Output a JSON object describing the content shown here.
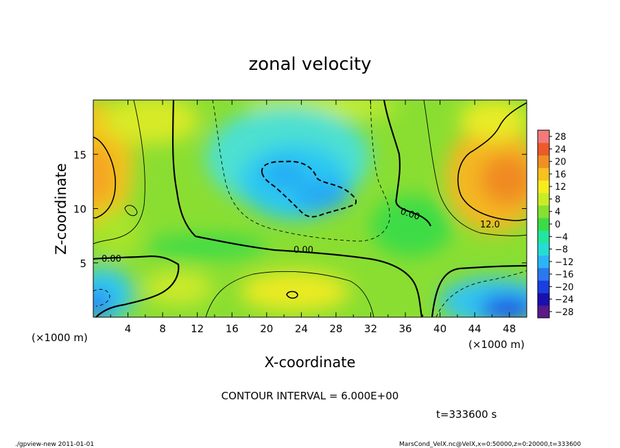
{
  "chart_data": {
    "type": "heatmap",
    "title": "zonal velocity",
    "xlabel": "X-coordinate",
    "ylabel": "Z-coordinate",
    "x_unit": "(×1000 m)",
    "y_unit": "(×1000 m)",
    "xlim": [
      0,
      50
    ],
    "ylim": [
      0,
      20
    ],
    "x_ticks": [
      "4",
      "8",
      "12",
      "16",
      "20",
      "24",
      "28",
      "32",
      "36",
      "40",
      "44",
      "48"
    ],
    "y_ticks": [
      "5",
      "10",
      "15"
    ],
    "colorbar": {
      "labels": [
        "28",
        "24",
        "20",
        "16",
        "12",
        "8",
        "4",
        "0",
        "−4",
        "−8",
        "−12",
        "−16",
        "−20",
        "−24",
        "−28"
      ],
      "range": [
        -30,
        30
      ],
      "colors": [
        "#5a1a8a",
        "#1a10b0",
        "#1a3fe0",
        "#2a78f0",
        "#2cb4f6",
        "#28dcd6",
        "#22e6a0",
        "#3cdc46",
        "#86e030",
        "#c8ec28",
        "#f6ec1e",
        "#f8c020",
        "#f09024",
        "#ec5a2a",
        "#f47a7a"
      ]
    },
    "contour_labels": [
      "0.00",
      "0.00",
      "0.00",
      "12.0"
    ],
    "contour_interval": "CONTOUR INTERVAL = 6.000E+00",
    "time": "t=333600  s",
    "field_summary": [
      {
        "region": "upper-left (x≈0–3, z≈10–17)",
        "value": 14
      },
      {
        "region": "center-top (x≈20–30, z≈9–14)",
        "value": -10
      },
      {
        "region": "upper-right (x≈42–50, z≈10–16)",
        "value": 16
      },
      {
        "region": "lower-left (x≈0–4, z≈0–3)",
        "value": -10
      },
      {
        "region": "lower-middle (x≈18–26, z≈1–4)",
        "value": 10
      },
      {
        "region": "lower-right (x≈42–50, z≈0–3)",
        "value": -18
      }
    ]
  },
  "footer": {
    "left": "./gpview-new   2011-01-01",
    "right": "MarsCond_VelX.nc@VelX,x=0:50000,z=0:20000,t=333600"
  }
}
